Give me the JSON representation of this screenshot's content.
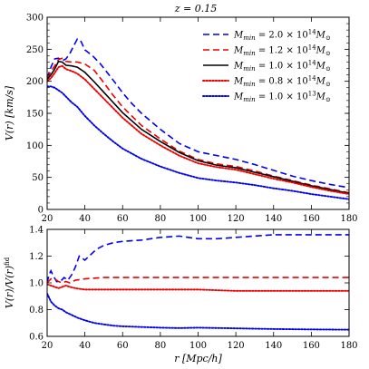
{
  "title": "z = 0.15",
  "chart_data": [
    {
      "type": "line",
      "ylabel": "V(r) [km/s]",
      "xlim": [
        20,
        180
      ],
      "ylim": [
        0,
        300
      ],
      "xticks": [
        20,
        40,
        60,
        80,
        100,
        120,
        140,
        160,
        180
      ],
      "yticks": [
        0,
        50,
        100,
        150,
        200,
        250,
        300
      ],
      "legend_position": "top-right",
      "series": [
        {
          "name": "M_min = 2.0 × 10^14 M_⊙",
          "color": "#0000ee",
          "style": "dashed",
          "x": [
            20,
            22,
            24,
            26,
            28,
            30,
            32,
            34,
            36,
            38,
            40,
            44,
            48,
            52,
            56,
            60,
            65,
            70,
            80,
            90,
            100,
            110,
            120,
            130,
            140,
            150,
            160,
            170,
            180
          ],
          "y": [
            205,
            222,
            235,
            236,
            232,
            235,
            243,
            255,
            266,
            262,
            249,
            240,
            228,
            213,
            198,
            182,
            165,
            150,
            125,
            103,
            90,
            84,
            78,
            70,
            61,
            52,
            45,
            39,
            34
          ]
        },
        {
          "name": "M_min = 1.2 × 10^14 M_⊙",
          "color": "#ee0000",
          "style": "dashed",
          "x": [
            20,
            22,
            24,
            26,
            28,
            30,
            33,
            36,
            40,
            45,
            50,
            55,
            60,
            70,
            80,
            90,
            100,
            110,
            120,
            130,
            140,
            150,
            160,
            170,
            180
          ],
          "y": [
            205,
            215,
            224,
            234,
            236,
            231,
            230,
            230,
            227,
            217,
            198,
            178,
            160,
            131,
            110,
            91,
            78,
            71,
            67,
            60,
            52,
            45,
            38,
            32,
            26
          ]
        },
        {
          "name": "M_min = 1.0 × 10^14 M_⊙",
          "color": "#000000",
          "style": "solid",
          "x": [
            20,
            22,
            24,
            26,
            28,
            30,
            33,
            36,
            40,
            45,
            50,
            55,
            60,
            70,
            80,
            90,
            100,
            110,
            120,
            130,
            140,
            150,
            160,
            170,
            180
          ],
          "y": [
            203,
            210,
            219,
            231,
            230,
            225,
            224,
            222,
            214,
            199,
            183,
            167,
            151,
            125,
            106,
            89,
            76,
            69,
            65,
            58,
            51,
            44,
            37,
            31,
            25
          ]
        },
        {
          "name": "M_min = 0.8 × 10^14 M_⊙",
          "color": "#ee0000",
          "style": "dotted",
          "x": [
            20,
            22,
            24,
            26,
            28,
            30,
            33,
            36,
            40,
            45,
            50,
            55,
            60,
            70,
            80,
            90,
            100,
            110,
            120,
            130,
            140,
            150,
            160,
            170,
            180
          ],
          "y": [
            200,
            205,
            213,
            222,
            224,
            219,
            216,
            212,
            203,
            188,
            173,
            158,
            143,
            118,
            100,
            84,
            72,
            66,
            62,
            55,
            48,
            42,
            35,
            29,
            24
          ]
        },
        {
          "name": "M_min = 1.0 × 10^13 M_⊙",
          "color": "#0000ee",
          "style": "dotted",
          "x": [
            20,
            22,
            24,
            26,
            28,
            30,
            33,
            36,
            40,
            45,
            50,
            55,
            60,
            70,
            80,
            90,
            100,
            110,
            120,
            130,
            140,
            150,
            160,
            170,
            180
          ],
          "y": [
            192,
            192,
            190,
            186,
            182,
            176,
            167,
            160,
            146,
            131,
            118,
            106,
            95,
            79,
            67,
            57,
            49,
            45,
            42,
            38,
            33,
            29,
            24,
            20,
            16
          ]
        }
      ]
    },
    {
      "type": "line",
      "xlabel": "r [Mpc/h]",
      "ylabel": "V(r)/V(r)^fid",
      "xlim": [
        20,
        180
      ],
      "ylim": [
        0.6,
        1.4
      ],
      "xticks": [
        20,
        40,
        60,
        80,
        100,
        120,
        140,
        160,
        180
      ],
      "yticks": [
        0.6,
        0.8,
        1.0,
        1.2,
        1.4
      ],
      "series": [
        {
          "color": "#0000ee",
          "style": "dashed",
          "x": [
            20,
            21,
            22,
            23,
            25,
            27,
            29,
            31,
            33,
            35,
            37,
            40,
            43,
            46,
            50,
            55,
            60,
            70,
            80,
            90,
            100,
            110,
            120,
            130,
            140,
            150,
            160,
            170,
            180
          ],
          "y": [
            1.0,
            1.06,
            1.09,
            1.06,
            1.01,
            1.01,
            1.04,
            1.02,
            1.06,
            1.12,
            1.2,
            1.17,
            1.21,
            1.25,
            1.28,
            1.3,
            1.31,
            1.32,
            1.34,
            1.35,
            1.33,
            1.33,
            1.34,
            1.35,
            1.36,
            1.36,
            1.36,
            1.36,
            1.36
          ]
        },
        {
          "color": "#ee0000",
          "style": "dashed",
          "x": [
            20,
            22,
            24,
            26,
            28,
            30,
            32,
            35,
            40,
            50,
            60,
            80,
            100,
            120,
            140,
            160,
            180
          ],
          "y": [
            1.0,
            1.03,
            1.03,
            1.01,
            1.0,
            1.01,
            1.0,
            1.02,
            1.03,
            1.04,
            1.04,
            1.04,
            1.04,
            1.04,
            1.04,
            1.04,
            1.04
          ]
        },
        {
          "color": "#ee0000",
          "style": "dotted",
          "x": [
            20,
            22,
            24,
            26,
            28,
            30,
            32,
            35,
            40,
            50,
            60,
            80,
            100,
            120,
            140,
            160,
            180
          ],
          "y": [
            0.99,
            0.98,
            0.97,
            0.96,
            0.97,
            0.98,
            0.97,
            0.96,
            0.95,
            0.95,
            0.95,
            0.95,
            0.95,
            0.94,
            0.94,
            0.94,
            0.94
          ]
        },
        {
          "color": "#0000ee",
          "style": "dotted",
          "x": [
            20,
            21,
            22,
            24,
            26,
            28,
            30,
            33,
            36,
            40,
            45,
            50,
            55,
            60,
            70,
            80,
            90,
            100,
            120,
            140,
            160,
            180
          ],
          "y": [
            0.92,
            0.89,
            0.86,
            0.83,
            0.81,
            0.8,
            0.78,
            0.76,
            0.74,
            0.72,
            0.7,
            0.69,
            0.68,
            0.675,
            0.67,
            0.665,
            0.662,
            0.665,
            0.66,
            0.655,
            0.652,
            0.65
          ]
        }
      ]
    }
  ]
}
